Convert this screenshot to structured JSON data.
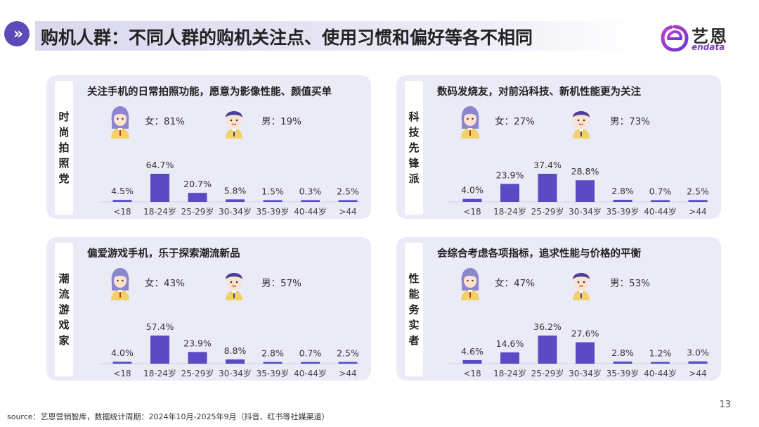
{
  "page": {
    "title": "购机人群：不同人群的购机关注点、使用习惯和偏好等各不相同",
    "page_number": "13",
    "source": "source：艺恩营销智库，数据统计周期：2024年10月-2025年9月（抖音、红书等社媒渠道）"
  },
  "logo": {
    "name_cn": "艺恩",
    "name_en": "endata"
  },
  "colors": {
    "accent": "#5b4ab8",
    "bar": "#5b4ac4",
    "panel_bg": "#ebebf8"
  },
  "panels": [
    {
      "segment": "时尚拍照党",
      "heading": "关注手机的日常拍照功能，愿意为影像性能、颜值买单",
      "female": "女：81%",
      "male": "男：19%"
    },
    {
      "segment": "科技先锋派",
      "heading": "数码发烧友，对前沿科技、新机性能更为关注",
      "female": "女：27%",
      "male": "男：73%"
    },
    {
      "segment": "潮流游戏家",
      "heading": "偏爱游戏手机，乐于探索潮流新品",
      "female": "女：43%",
      "male": "男：57%"
    },
    {
      "segment": "性能务实者",
      "heading": "会综合考虑各项指标，追求性能与价格的平衡",
      "female": "女：47%",
      "male": "男：53%"
    }
  ],
  "chart_data": [
    {
      "type": "bar",
      "title": "时尚拍照党",
      "categories": [
        "<18",
        "18-24岁",
        "25-29岁",
        "30-34岁",
        "35-39岁",
        "40-44岁",
        ">44"
      ],
      "values": [
        4.5,
        64.7,
        20.7,
        5.8,
        1.5,
        0.3,
        2.5
      ],
      "labels": [
        "4.5%",
        "64.7%",
        "20.7%",
        "5.8%",
        "1.5%",
        "0.3%",
        "2.5%"
      ]
    },
    {
      "type": "bar",
      "title": "科技先锋派",
      "categories": [
        "<18",
        "18-24岁",
        "25-29岁",
        "30-34岁",
        "35-39岁",
        "40-44岁",
        ">44"
      ],
      "values": [
        4.0,
        23.9,
        37.4,
        28.8,
        2.8,
        0.7,
        2.5
      ],
      "labels": [
        "4.0%",
        "23.9%",
        "37.4%",
        "28.8%",
        "2.8%",
        "0.7%",
        "2.5%"
      ]
    },
    {
      "type": "bar",
      "title": "潮流游戏家",
      "categories": [
        "<18",
        "18-24岁",
        "25-29岁",
        "30-34岁",
        "35-39岁",
        "40-44岁",
        ">44"
      ],
      "values": [
        4.0,
        57.4,
        23.9,
        8.8,
        2.8,
        0.7,
        2.5
      ],
      "labels": [
        "4.0%",
        "57.4%",
        "23.9%",
        "8.8%",
        "2.8%",
        "0.7%",
        "2.5%"
      ]
    },
    {
      "type": "bar",
      "title": "性能务实者",
      "categories": [
        "<18",
        "18-24岁",
        "25-29岁",
        "30-34岁",
        "35-39岁",
        "40-44岁",
        ">44"
      ],
      "values": [
        4.6,
        14.6,
        36.2,
        27.6,
        2.8,
        1.2,
        3.0
      ],
      "labels": [
        "4.6%",
        "14.6%",
        "36.2%",
        "27.6%",
        "2.8%",
        "1.2%",
        "3.0%"
      ]
    }
  ]
}
